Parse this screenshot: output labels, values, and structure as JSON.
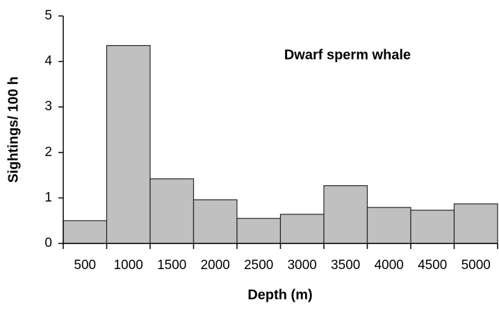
{
  "chart_data": {
    "type": "bar",
    "annotation": "Dwarf sperm whale",
    "xlabel": "Depth (m)",
    "ylabel": "Sightings/ 100 h",
    "categories": [
      "500",
      "1000",
      "1500",
      "2000",
      "2500",
      "3000",
      "3500",
      "4000",
      "4500",
      "5000"
    ],
    "values": [
      0.5,
      4.35,
      1.42,
      0.96,
      0.55,
      0.64,
      1.27,
      0.79,
      0.73,
      0.87
    ],
    "color": "#c0c0c0",
    "ylim": [
      0,
      5
    ],
    "yticks": [
      0,
      1,
      2,
      3,
      4,
      5
    ],
    "grid": false
  }
}
